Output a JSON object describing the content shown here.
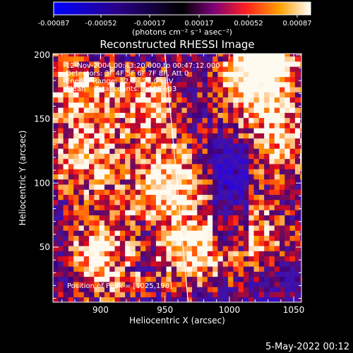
{
  "colorbar": {
    "tick_labels": [
      "-0.00087",
      "-0.00052",
      "-0.00017",
      "0.00017",
      "0.00052",
      "0.00087"
    ],
    "min": -0.00087,
    "max": 0.00087,
    "units_label": "(photons cm⁻² s⁻¹ asec⁻²)"
  },
  "chart_data": {
    "type": "heatmap",
    "title": "Reconstructed RHESSI Image",
    "xlabel": "Heliocentric X (arcsec)",
    "ylabel": "Heliocentric Y (arcsec)",
    "xlim": [
      863,
      1056
    ],
    "ylim": [
      7,
      201
    ],
    "x_ticks": [
      900,
      950,
      1000,
      1050
    ],
    "y_ticks": [
      50,
      100,
      150,
      200
    ],
    "grid": false,
    "annotations": [
      "12-Nov-2004 00:43:20.000 to 00:47:12.000",
      "Detectors: 3F 4F 5F 6F 7F 8F, Att 0",
      "Energy Range: 12.0 - 25.0 keV",
      "Clean    Total counts: 1.10E+03"
    ],
    "peak_label": "Position of Peak = [1025,198]",
    "peak_position": [
      1025,
      198
    ],
    "limb_line": [
      [
        950,
        201
      ],
      [
        968,
        7
      ]
    ],
    "pixel_size_arcsec": 4,
    "colors": {
      "low": "#0000ff",
      "mid": "#000000",
      "high": "#ffffff",
      "hot": "#ff4000"
    }
  },
  "footer": {
    "date": "5-May-2022 00:12"
  }
}
